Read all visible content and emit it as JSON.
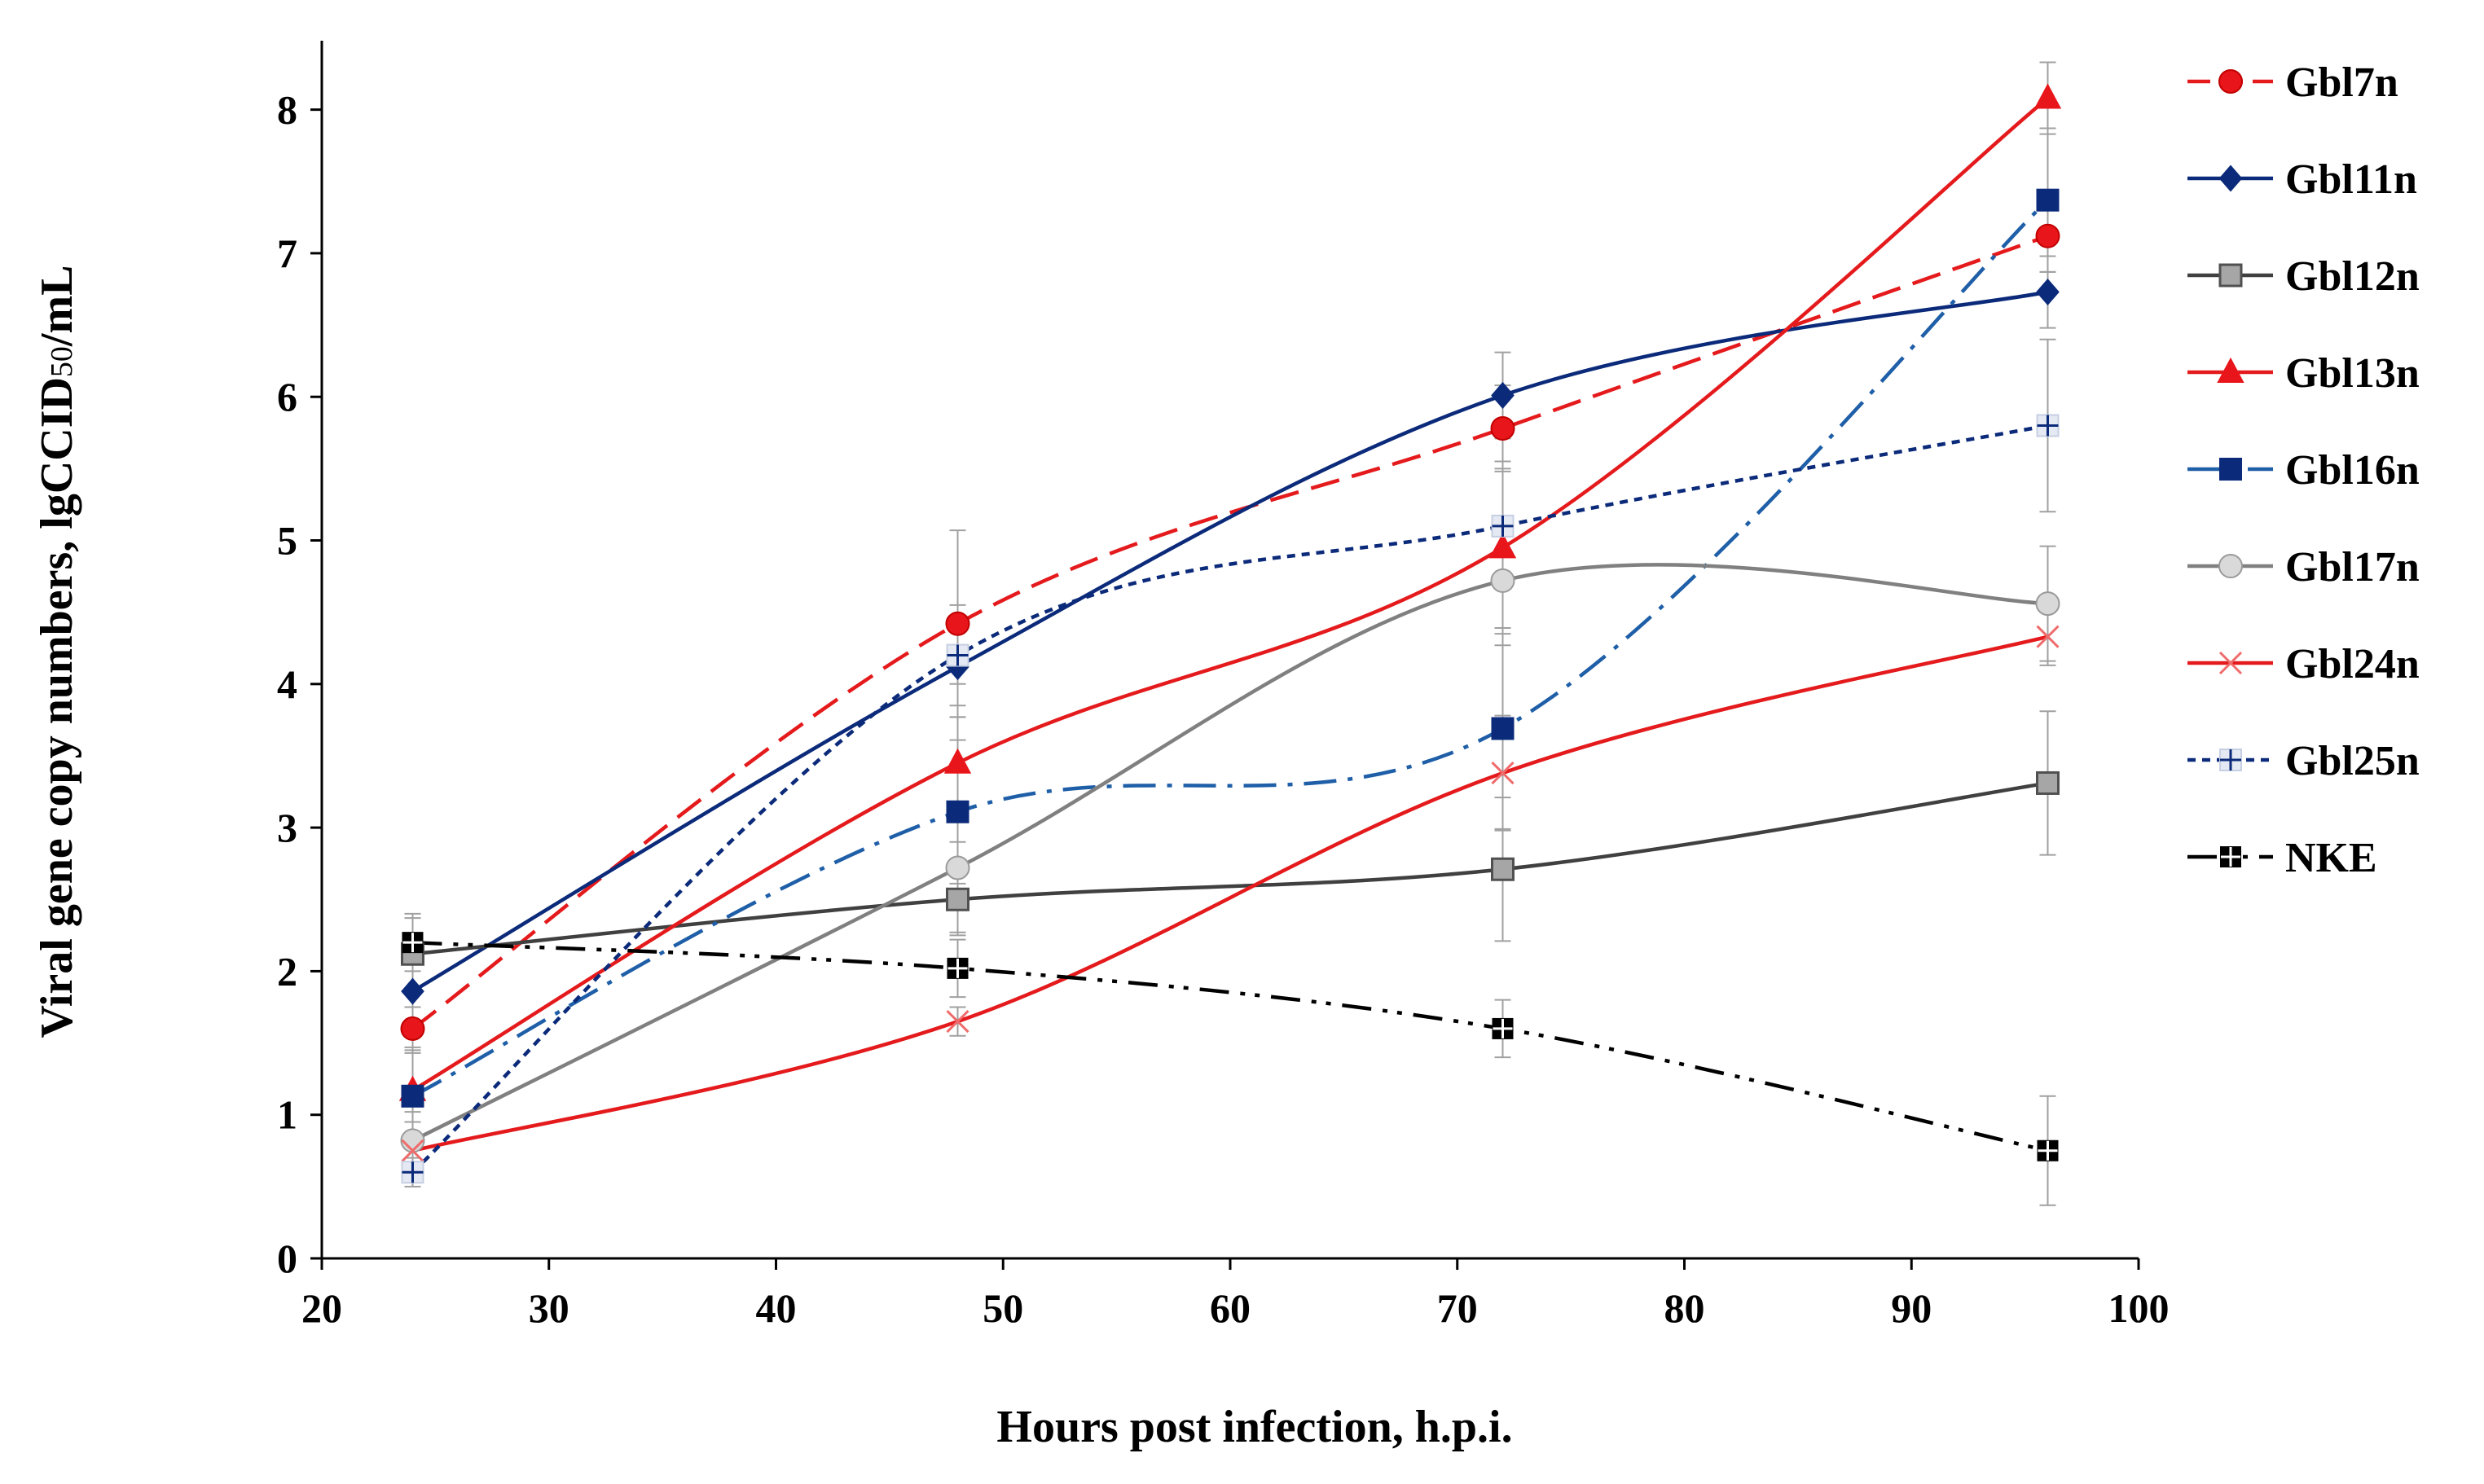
{
  "chart_data": {
    "type": "line",
    "title": "",
    "xlabel": "Hours post infection, h.p.i.",
    "ylabel_main": "Viral gene copy numbers, lgCCID",
    "ylabel_sub": "50",
    "ylabel_end": "/mL",
    "xlim": [
      20,
      100
    ],
    "ylim": [
      0,
      8.5
    ],
    "xticks": [
      20,
      30,
      40,
      50,
      60,
      70,
      80,
      90,
      100
    ],
    "yticks": [
      0,
      1,
      2,
      3,
      4,
      5,
      6,
      7,
      8
    ],
    "x": [
      24,
      48,
      72,
      96
    ],
    "legend_position": "right",
    "series": [
      {
        "name": "Gbl7n",
        "values": [
          1.6,
          4.42,
          5.78,
          7.12
        ],
        "errors": [
          0.15,
          0.65,
          0.3,
          0.25
        ],
        "color": "#e41a1c",
        "dash": "dashed",
        "marker": "circle"
      },
      {
        "name": "Gbl11n",
        "values": [
          1.86,
          4.12,
          6.01,
          6.73
        ],
        "errors": [
          0.3,
          0.35,
          0.3,
          0.25
        ],
        "color": "#0b2a7a",
        "dash": "solid",
        "marker": "diamond"
      },
      {
        "name": "Gbl12n",
        "values": [
          2.12,
          2.5,
          2.71,
          3.31
        ],
        "errors": [
          0.25,
          0.25,
          0.5,
          0.5
        ],
        "color": "#404040",
        "dash": "solid",
        "marker": "square-gray"
      },
      {
        "name": "Gbl13n",
        "values": [
          1.17,
          3.45,
          4.95,
          8.08
        ],
        "errors": [
          0.3,
          0.55,
          0.6,
          0.25
        ],
        "color": "#e41a1c",
        "dash": "solid",
        "marker": "triangle"
      },
      {
        "name": "Gbl16n",
        "values": [
          1.13,
          3.11,
          3.69,
          7.37
        ],
        "errors": [
          0.3,
          0.5,
          0.7,
          0.5
        ],
        "color": "#1f5fa8",
        "dash": "dashdot",
        "marker": "square-blue"
      },
      {
        "name": "Gbl17n",
        "values": [
          0.82,
          2.72,
          4.72,
          4.56
        ],
        "errors": [
          0.2,
          0.45,
          0.45,
          0.4
        ],
        "color": "#808080",
        "dash": "solid",
        "marker": "circle-gray"
      },
      {
        "name": "Gbl24n",
        "values": [
          0.75,
          1.65,
          3.38,
          4.33
        ],
        "errors": [
          0.2,
          0.1,
          0.4,
          0.2
        ],
        "color": "#e41a1c",
        "dash": "solid",
        "marker": "x"
      },
      {
        "name": "Gbl25n",
        "values": [
          0.6,
          4.2,
          5.1,
          5.8
        ],
        "errors": [
          0.1,
          0.35,
          0.4,
          0.6
        ],
        "color": "#0b2a7a",
        "dash": "dotted",
        "marker": "plus"
      },
      {
        "name": "NKE",
        "values": [
          2.2,
          2.02,
          1.6,
          0.75
        ],
        "errors": [
          0.2,
          0.2,
          0.2,
          0.38
        ],
        "color": "#000000",
        "dash": "dashdotdot",
        "marker": "square-black"
      }
    ]
  }
}
